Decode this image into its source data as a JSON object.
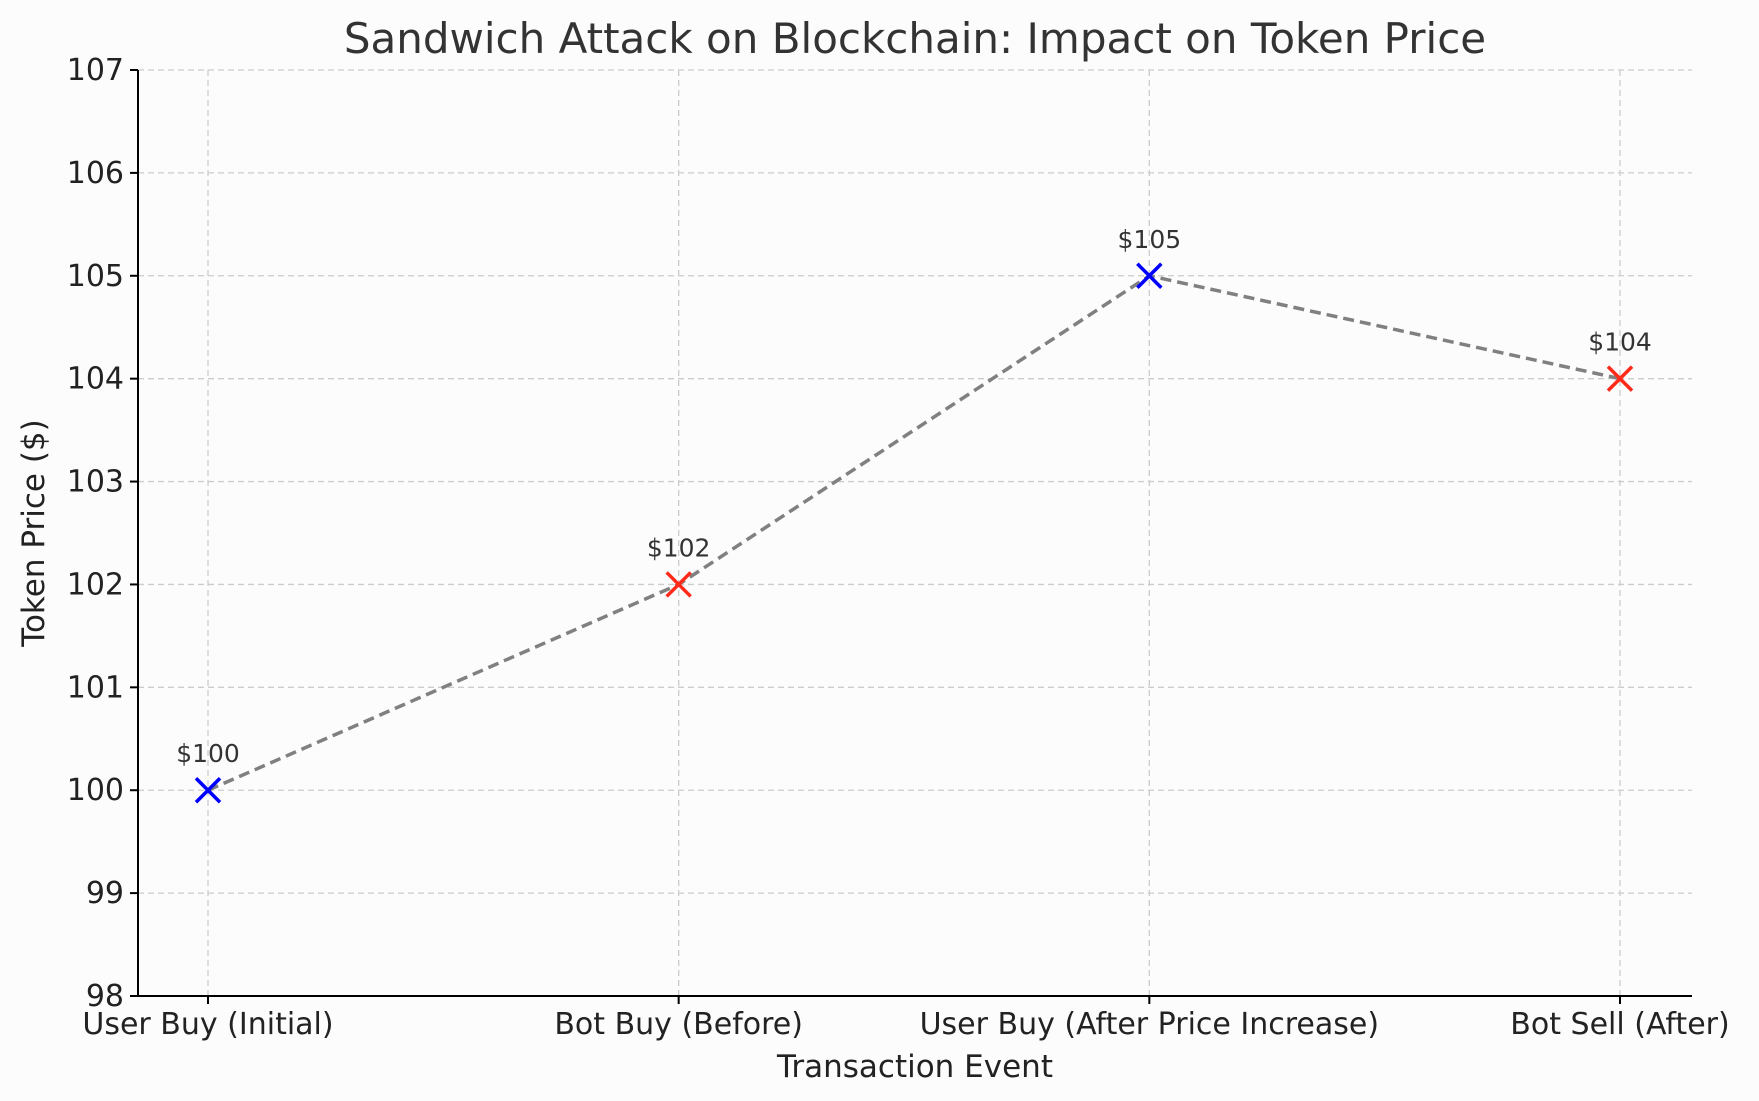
{
  "chart_data": {
    "type": "line",
    "title": "Sandwich Attack on Blockchain: Impact on Token Price",
    "xlabel": "Transaction Event",
    "ylabel": "Token Price ($)",
    "categories": [
      "User Buy (Initial)",
      "Bot Buy (Before)",
      "User Buy (After Price Increase)",
      "Bot Sell (After)"
    ],
    "series": [
      {
        "values": [
          100,
          102,
          105,
          104
        ],
        "data_labels": [
          "$100",
          "$102",
          "$105",
          "$104"
        ],
        "line_color": "#808080",
        "line_style": "dashed",
        "marker": "x",
        "marker_colors": [
          "#0000ff",
          "#ff2a1a",
          "#0000ff",
          "#ff2a1a"
        ]
      }
    ],
    "ylim": [
      98,
      107
    ],
    "yticks": [
      98,
      99,
      100,
      101,
      102,
      103,
      104,
      105,
      106,
      107
    ],
    "ytick_labels": [
      "98",
      "99",
      "100",
      "101",
      "102",
      "103",
      "104",
      "105",
      "106",
      "107"
    ],
    "grid": true,
    "legend": null
  }
}
